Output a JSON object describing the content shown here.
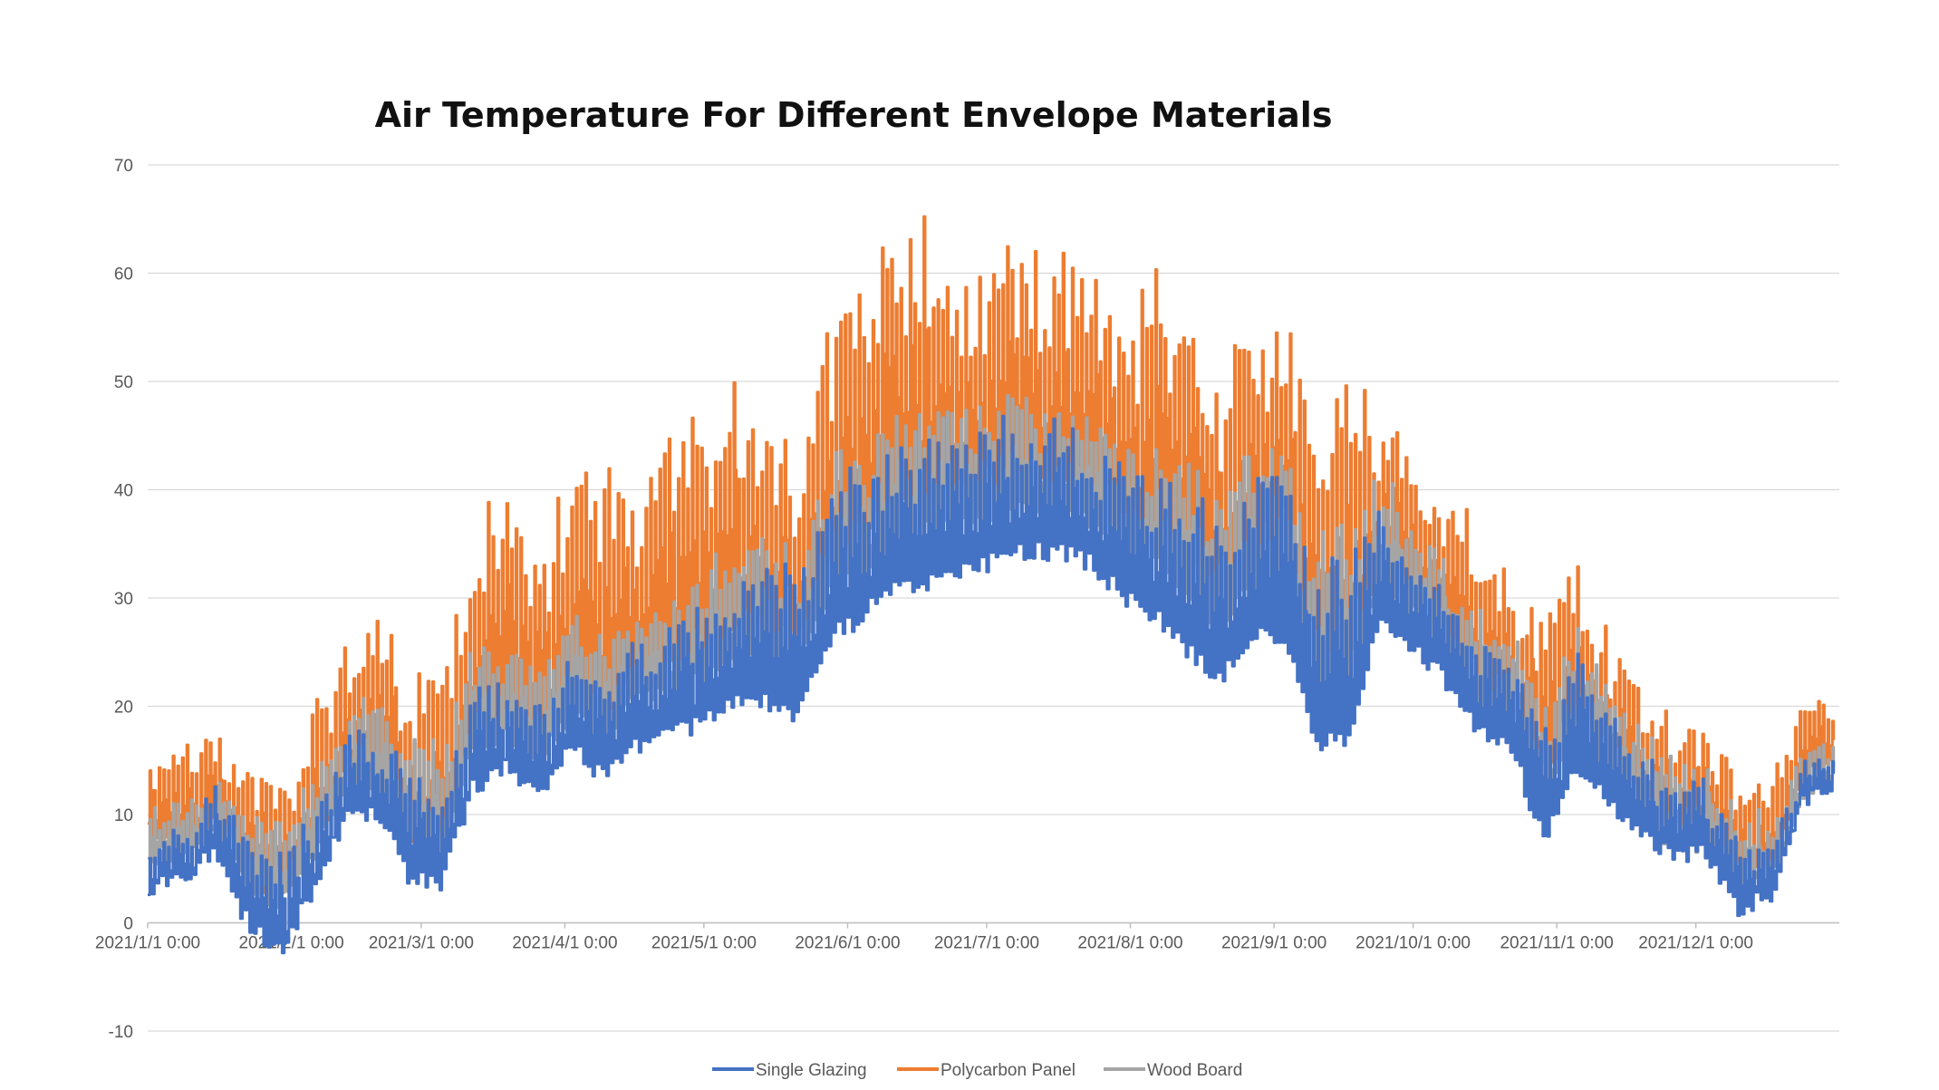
{
  "chart_data": {
    "type": "line",
    "title": "Air Temperature For Different Envelope Materials",
    "xlabel": "",
    "ylabel": "",
    "ylim": [
      -10,
      70
    ],
    "yticks": [
      -10,
      0,
      10,
      20,
      30,
      40,
      50,
      60,
      70
    ],
    "xlim": [
      "2021/1/1 0:00",
      "2021/12/31 23:00"
    ],
    "xticks": [
      "2021/1/1 0:00",
      "2021/2/1 0:00",
      "2021/3/1 0:00",
      "2021/4/1 0:00",
      "2021/5/1 0:00",
      "2021/6/1 0:00",
      "2021/7/1 0:00",
      "2021/8/1 0:00",
      "2021/9/1 0:00",
      "2021/10/1 0:00",
      "2021/11/1 0:00",
      "2021/12/1 0:00"
    ],
    "grid": true,
    "legend_position": "bottom",
    "x": [
      "2021/1/1 0:00",
      "2021/1/8 0:00",
      "2021/1/15 0:00",
      "2021/1/22 0:00",
      "2021/1/29 0:00",
      "2021/2/5 0:00",
      "2021/2/12 0:00",
      "2021/2/19 0:00",
      "2021/2/26 0:00",
      "2021/3/5 0:00",
      "2021/3/12 0:00",
      "2021/3/19 0:00",
      "2021/3/26 0:00",
      "2021/4/2 0:00",
      "2021/4/9 0:00",
      "2021/4/16 0:00",
      "2021/4/23 0:00",
      "2021/4/30 0:00",
      "2021/5/7 0:00",
      "2021/5/14 0:00",
      "2021/5/21 0:00",
      "2021/5/28 0:00",
      "2021/6/4 0:00",
      "2021/6/11 0:00",
      "2021/6/18 0:00",
      "2021/6/25 0:00",
      "2021/7/2 0:00",
      "2021/7/9 0:00",
      "2021/7/16 0:00",
      "2021/7/23 0:00",
      "2021/7/30 0:00",
      "2021/8/6 0:00",
      "2021/8/13 0:00",
      "2021/8/20 0:00",
      "2021/8/27 0:00",
      "2021/9/3 0:00",
      "2021/9/10 0:00",
      "2021/9/17 0:00",
      "2021/9/24 0:00",
      "2021/10/1 0:00",
      "2021/10/8 0:00",
      "2021/10/15 0:00",
      "2021/10/22 0:00",
      "2021/10/29 0:00",
      "2021/11/5 0:00",
      "2021/11/12 0:00",
      "2021/11/19 0:00",
      "2021/11/26 0:00",
      "2021/12/3 0:00",
      "2021/12/10 0:00",
      "2021/12/17 0:00",
      "2021/12/24 0:00",
      "2021/12/31 0:00"
    ],
    "series": [
      {
        "name": "Single Glazing",
        "color": "#4472C4",
        "min": [
          3,
          4,
          6,
          0,
          -3,
          2,
          9,
          10,
          4,
          3,
          12,
          14,
          11,
          16,
          13,
          16,
          17,
          18,
          20,
          20,
          19,
          26,
          28,
          31,
          31,
          32,
          33,
          34,
          34,
          33,
          30,
          28,
          25,
          22,
          26,
          26,
          16,
          17,
          28,
          25,
          22,
          17,
          16,
          7,
          14,
          11,
          8,
          6,
          6,
          1,
          2,
          11,
          12
        ],
        "max": [
          8,
          9,
          12,
          8,
          6,
          9,
          17,
          17,
          14,
          12,
          22,
          21,
          19,
          25,
          23,
          26,
          27,
          29,
          31,
          33,
          32,
          40,
          42,
          44,
          45,
          45,
          46,
          46,
          46,
          44,
          42,
          41,
          40,
          37,
          42,
          41,
          32,
          34,
          39,
          35,
          30,
          25,
          25,
          17,
          25,
          19,
          15,
          13,
          12,
          8,
          8,
          15,
          15
        ]
      },
      {
        "name": "Polycarbon Panel",
        "color": "#ED7D31",
        "min": [
          8,
          6,
          9,
          5,
          2,
          6,
          13,
          14,
          8,
          6,
          18,
          19,
          16,
          21,
          19,
          22,
          23,
          24,
          26,
          26,
          25,
          32,
          35,
          38,
          39,
          39,
          40,
          41,
          41,
          40,
          37,
          35,
          32,
          29,
          34,
          33,
          21,
          23,
          33,
          30,
          26,
          21,
          20,
          12,
          18,
          14,
          10,
          8,
          8,
          4,
          4,
          13,
          14
        ],
        "max": [
          15,
          16,
          17,
          14,
          13,
          20,
          25,
          29,
          23,
          25,
          38,
          40,
          35,
          43,
          43,
          41,
          44,
          47,
          49,
          47,
          42,
          56,
          62,
          63,
          65,
          60,
          62,
          62,
          62,
          61,
          56,
          60,
          57,
          51,
          57,
          57,
          44,
          53,
          48,
          43,
          38,
          39,
          30,
          28,
          33,
          26,
          21,
          19,
          19,
          14,
          14,
          20,
          20
        ]
      },
      {
        "name": "Wood Board",
        "color": "#A5A5A5",
        "min": [
          5,
          5,
          8,
          4,
          1,
          5,
          12,
          12,
          7,
          5,
          16,
          17,
          14,
          19,
          17,
          20,
          21,
          22,
          24,
          24,
          23,
          30,
          32,
          35,
          36,
          36,
          37,
          38,
          38,
          37,
          34,
          33,
          30,
          27,
          31,
          31,
          20,
          21,
          31,
          28,
          24,
          19,
          18,
          10,
          17,
          13,
          9,
          7,
          7,
          3,
          3,
          12,
          13
        ],
        "max": [
          10,
          11,
          13,
          11,
          9,
          14,
          19,
          21,
          17,
          16,
          26,
          26,
          23,
          28,
          27,
          28,
          30,
          32,
          35,
          35,
          34,
          43,
          45,
          47,
          48,
          47,
          48,
          48,
          47,
          46,
          44,
          44,
          42,
          40,
          44,
          43,
          36,
          38,
          41,
          37,
          32,
          28,
          27,
          19,
          27,
          21,
          17,
          15,
          14,
          10,
          10,
          17,
          17
        ]
      }
    ]
  }
}
